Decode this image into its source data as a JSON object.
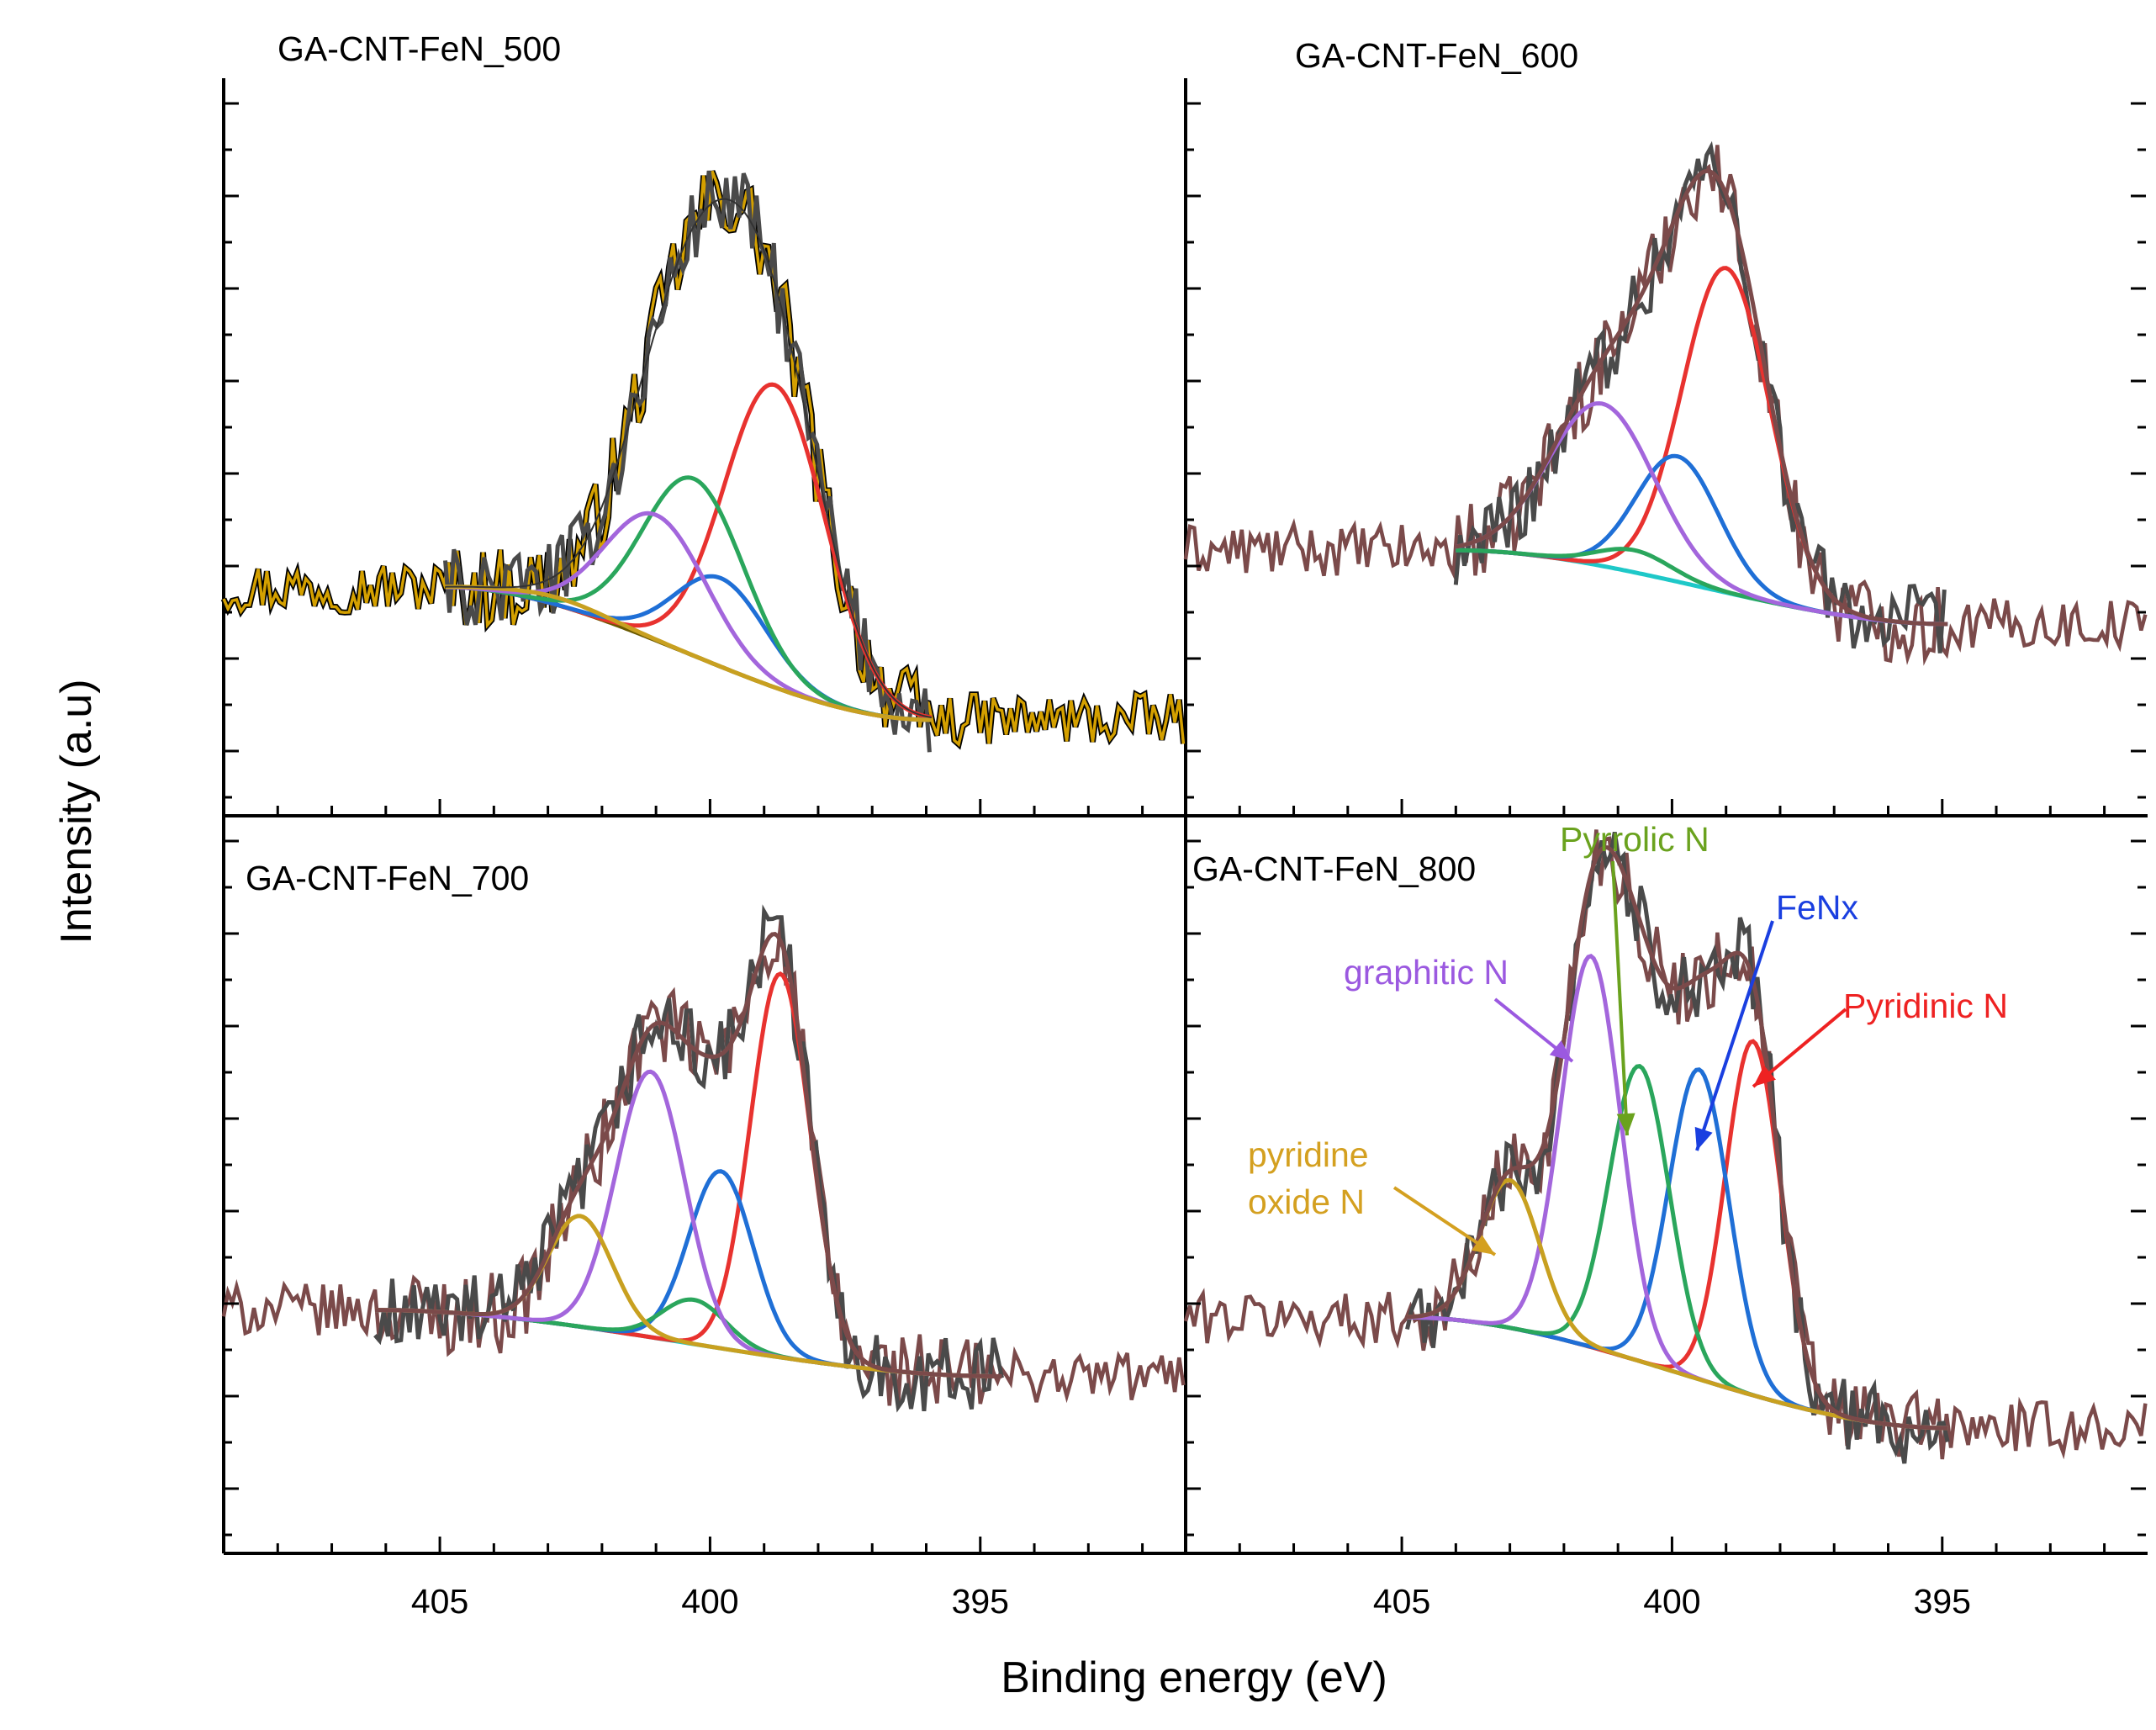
{
  "figure": {
    "ylabel": "Intensity (a.u)",
    "xlabel": "Binding energy (eV)",
    "xlim": [
      409,
      391.2
    ],
    "x_ticks": [
      405,
      400,
      395
    ]
  },
  "colors": {
    "raw": "#4a4a4a",
    "envelope": "#7b4a4a",
    "background": "#1ec8c8",
    "pyridinic": "#e8322f",
    "fenx": "#1f6fd6",
    "pyrrolic": "#2aa65c",
    "graphitic": "#a366dc",
    "oxide": "#c8a020",
    "raw_500": "#d4a000"
  },
  "annotations": {
    "pyrrolic": "Pyrrolic N",
    "fenx": "FeNx",
    "graphitic": "graphitic N",
    "pyridinic": "Pyridinic N",
    "oxide_line1": "pyridine",
    "oxide_line2": "oxide N"
  },
  "chart_data": [
    {
      "type": "line",
      "title": "GA-CNT-FeN_500",
      "xlabel": "Binding energy (eV)",
      "ylabel": "Intensity (a.u)",
      "xlim": [
        409,
        391.2
      ],
      "ylim": [
        0,
        1
      ],
      "fit_range": [
        404.9,
        395.9
      ],
      "background": {
        "left": 0.31,
        "right": 0.13
      },
      "noise": 0.035,
      "components": [
        {
          "name": "Pyridinic N",
          "center": 398.8,
          "height": 0.41,
          "fwhm": 2.2,
          "color": "#e8322f"
        },
        {
          "name": "FeNx",
          "center": 399.8,
          "height": 0.12,
          "fwhm": 2.0,
          "color": "#1f6fd6"
        },
        {
          "name": "Pyrrolic N",
          "center": 400.3,
          "height": 0.24,
          "fwhm": 2.2,
          "color": "#2aa65c"
        },
        {
          "name": "graphitic N",
          "center": 401.0,
          "height": 0.17,
          "fwhm": 2.2,
          "color": "#a366dc"
        },
        {
          "name": "pyridine oxide N",
          "center": 402.8,
          "height": 0.01,
          "fwhm": 2.0,
          "color": "#c8a020"
        }
      ]
    },
    {
      "type": "line",
      "title": "GA-CNT-FeN_600",
      "xlabel": "Binding energy (eV)",
      "ylabel": "Intensity (a.u)",
      "xlim": [
        409,
        391.2
      ],
      "ylim": [
        0,
        1
      ],
      "fit_range": [
        404.0,
        394.9
      ],
      "background": {
        "left": 0.36,
        "right": 0.26
      },
      "noise": 0.035,
      "components": [
        {
          "name": "Pyridinic N",
          "center": 399.0,
          "height": 0.44,
          "fwhm": 1.9,
          "color": "#e8322f"
        },
        {
          "name": "FeNx",
          "center": 399.9,
          "height": 0.17,
          "fwhm": 1.8,
          "color": "#1f6fd6"
        },
        {
          "name": "Pyrrolic N",
          "center": 400.7,
          "height": 0.03,
          "fwhm": 1.6,
          "color": "#2aa65c"
        },
        {
          "name": "graphitic N",
          "center": 401.3,
          "height": 0.22,
          "fwhm": 2.3,
          "color": "#a366dc"
        }
      ]
    },
    {
      "type": "line",
      "title": "GA-CNT-FeN_700",
      "xlabel": "Binding energy (eV)",
      "ylabel": "Intensity (a.u)",
      "xlim": [
        409,
        391.2
      ],
      "ylim": [
        0,
        1
      ],
      "fit_range": [
        406.2,
        394.6
      ],
      "background": {
        "left": 0.33,
        "right": 0.24
      },
      "noise": 0.035,
      "components": [
        {
          "name": "Pyridinic N",
          "center": 398.7,
          "height": 0.52,
          "fwhm": 1.3,
          "color": "#e8322f"
        },
        {
          "name": "FeNx",
          "center": 399.8,
          "height": 0.24,
          "fwhm": 1.4,
          "color": "#1f6fd6"
        },
        {
          "name": "Pyrrolic N",
          "center": 400.3,
          "height": 0.06,
          "fwhm": 1.4,
          "color": "#2aa65c"
        },
        {
          "name": "graphitic N",
          "center": 401.1,
          "height": 0.36,
          "fwhm": 1.5,
          "color": "#a366dc"
        },
        {
          "name": "pyridine oxide N",
          "center": 402.4,
          "height": 0.15,
          "fwhm": 1.4,
          "color": "#c8a020"
        }
      ]
    },
    {
      "type": "line",
      "title": "GA-CNT-FeN_800",
      "xlabel": "Binding energy (eV)",
      "ylabel": "Intensity (a.u)",
      "xlim": [
        409,
        391.2
      ],
      "ylim": [
        0,
        1
      ],
      "fit_range": [
        404.9,
        394.9
      ],
      "background": {
        "left": 0.32,
        "right": 0.17
      },
      "noise": 0.035,
      "components": [
        {
          "name": "Pyridinic N",
          "center": 398.5,
          "height": 0.48,
          "fwhm": 1.2,
          "color": "#e8322f"
        },
        {
          "name": "FeNx",
          "center": 399.5,
          "height": 0.42,
          "fwhm": 1.3,
          "color": "#1f6fd6"
        },
        {
          "name": "Pyrrolic N",
          "center": 400.6,
          "height": 0.4,
          "fwhm": 1.3,
          "color": "#2aa65c"
        },
        {
          "name": "graphitic N",
          "center": 401.5,
          "height": 0.53,
          "fwhm": 1.3,
          "color": "#a366dc"
        },
        {
          "name": "pyridine oxide N",
          "center": 403.0,
          "height": 0.2,
          "fwhm": 1.3,
          "color": "#c8a020"
        }
      ]
    }
  ]
}
